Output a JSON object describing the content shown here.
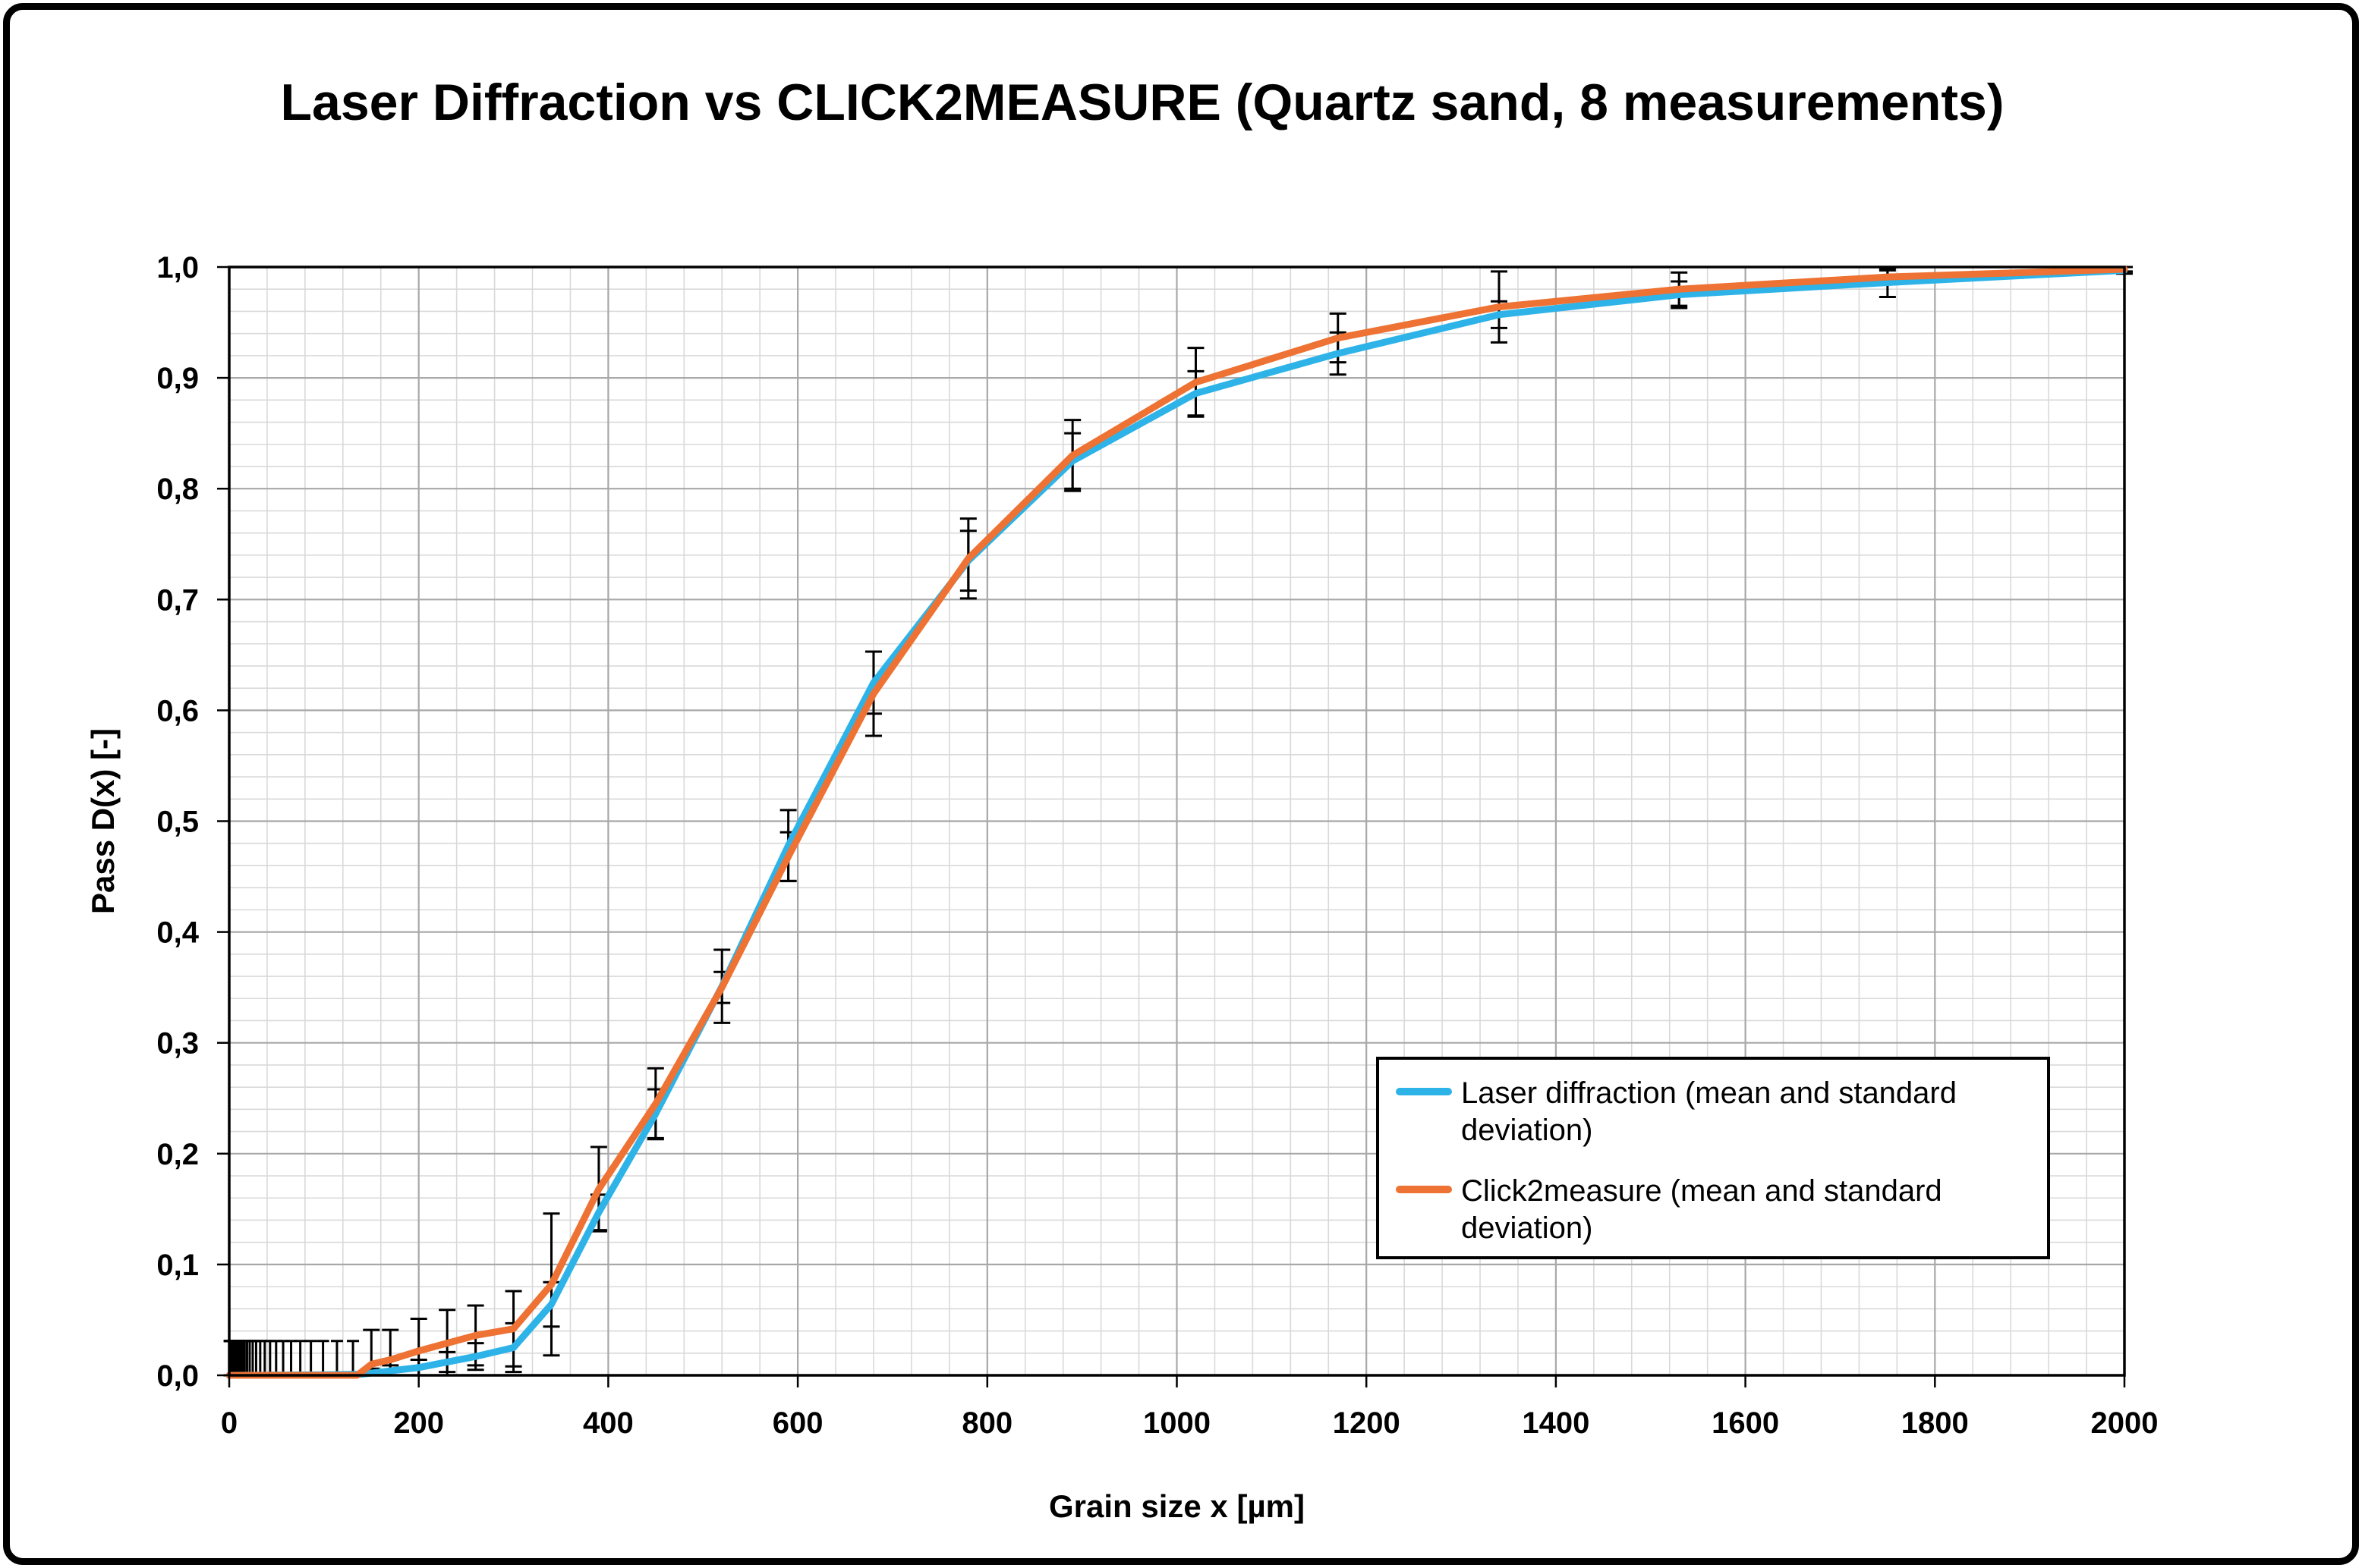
{
  "colors": {
    "laser": "#2EB3E8",
    "click2measure": "#ED7233",
    "grid_minor": "#D9D9D9",
    "grid_major": "#A8A8A8",
    "axis": "#000000",
    "error_bar": "#000000",
    "background": "#FFFFFF"
  },
  "legend": {
    "border_color": "#000000",
    "position": "inside-right-lower"
  },
  "chart_data": {
    "type": "line",
    "title": "Laser Diffraction vs CLICK2MEASURE (Quartz sand, 8 measurements)",
    "xlabel": "Grain size x [µm]",
    "ylabel": "Pass D(x) [-]",
    "xlim": [
      0,
      2000
    ],
    "ylim": [
      0,
      1
    ],
    "grid": {
      "minor_x": 40,
      "minor_y": 0.02,
      "major_x": 200,
      "major_y": 0.1,
      "grid_on": true
    },
    "x_ticks": [
      0,
      200,
      400,
      600,
      800,
      1000,
      1200,
      1400,
      1600,
      1800,
      2000
    ],
    "x_tick_labels": [
      "0",
      "200",
      "400",
      "600",
      "800",
      "1000",
      "1200",
      "1400",
      "1600",
      "1800",
      "2000"
    ],
    "y_ticks": [
      0,
      0.1,
      0.2,
      0.3,
      0.4,
      0.5,
      0.6,
      0.7,
      0.8,
      0.9,
      1.0
    ],
    "y_tick_labels": [
      "0,0",
      "0,1",
      "0,2",
      "0,3",
      "0,4",
      "0,5",
      "0,6",
      "0,7",
      "0,8",
      "0,9",
      "1,0"
    ],
    "point_x": [
      150,
      170,
      200,
      230,
      260,
      300,
      340,
      390,
      450,
      520,
      590,
      680,
      780,
      890,
      1020,
      1170,
      1340,
      1530,
      1750,
      2000
    ],
    "series": [
      {
        "name": "Laser diffraction (mean and standard deviation)",
        "color": "#2EB3E8",
        "line_x": [
          0,
          100,
          140,
          150,
          170,
          200,
          230,
          260,
          300,
          340,
          390,
          450,
          520,
          590,
          680,
          780,
          890,
          1020,
          1170,
          1340,
          1530,
          1750,
          2000
        ],
        "line_y": [
          0,
          0.0005,
          0.001,
          0.002,
          0.004,
          0.007,
          0.012,
          0.017,
          0.025,
          0.064,
          0.147,
          0.236,
          0.351,
          0.478,
          0.625,
          0.735,
          0.825,
          0.886,
          0.922,
          0.957,
          0.975,
          0.986,
          0.997
        ],
        "mean": [
          0.002,
          0.004,
          0.007,
          0.012,
          0.017,
          0.025,
          0.064,
          0.147,
          0.236,
          0.351,
          0.478,
          0.625,
          0.735,
          0.825,
          0.886,
          0.922,
          0.957,
          0.975,
          0.986,
          0.997
        ],
        "sd": [
          0.004,
          0.005,
          0.007,
          0.009,
          0.012,
          0.022,
          0.02,
          0.016,
          0.022,
          0.033,
          0.032,
          0.028,
          0.027,
          0.025,
          0.02,
          0.019,
          0.012,
          0.012,
          0.013,
          0.003
        ]
      },
      {
        "name": "Click2measure (mean and standard deviation)",
        "color": "#ED7233",
        "line_x": [
          0,
          135,
          150,
          170,
          200,
          230,
          260,
          300,
          340,
          390,
          450,
          520,
          590,
          680,
          780,
          890,
          1020,
          1170,
          1340,
          1530,
          1750,
          2000
        ],
        "line_y": [
          0,
          0,
          0.01,
          0.014,
          0.022,
          0.029,
          0.036,
          0.042,
          0.082,
          0.168,
          0.245,
          0.35,
          0.468,
          0.615,
          0.737,
          0.83,
          0.896,
          0.936,
          0.964,
          0.98,
          0.991,
          0.998
        ],
        "mean": [
          0.01,
          0.014,
          0.022,
          0.029,
          0.036,
          0.042,
          0.082,
          0.168,
          0.245,
          0.35,
          0.468,
          0.615,
          0.737,
          0.83,
          0.896,
          0.936,
          0.964,
          0.98,
          0.991,
          0.998
        ],
        "sd": [
          0.031,
          0.027,
          0.029,
          0.03,
          0.027,
          0.034,
          0.064,
          0.038,
          0.032,
          0.014,
          0.022,
          0.038,
          0.036,
          0.032,
          0.031,
          0.022,
          0.032,
          0.015,
          0.006,
          0.002
        ]
      }
    ],
    "laser_fine_cluster": {
      "note": "dense laser-diffraction error bars below 150 um, mean ~0, sd ~0.03",
      "mean": 0.0005,
      "sd": 0.0305,
      "x": [
        130.6,
        113.7,
        99.0,
        86.2,
        75.0,
        65.3,
        56.9,
        49.5,
        43.1,
        37.5,
        32.7,
        28.4,
        24.8,
        21.6,
        18.8,
        16.3,
        14.2,
        12.4,
        10.8,
        9.4,
        8.2,
        7.1,
        6.2,
        5.4,
        4.7,
        4.1,
        3.6,
        3.1,
        2.7,
        2.3,
        2.0,
        1.8,
        1.5,
        1.3,
        1.2,
        1.0,
        0.9,
        0.8,
        0.7,
        0.6,
        0.5
      ]
    },
    "legend_entries": [
      "Laser diffraction (mean and standard deviation)",
      "Click2measure (mean and standard deviation)"
    ]
  }
}
